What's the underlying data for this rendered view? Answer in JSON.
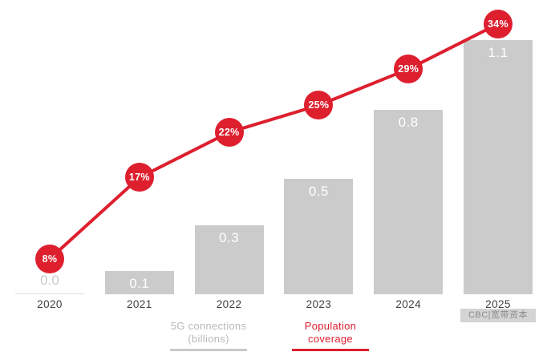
{
  "chart_data": {
    "type": "bar",
    "subtype": "combo-bar-line",
    "categories": [
      "2020",
      "2021",
      "2022",
      "2023",
      "2024",
      "2025"
    ],
    "series": [
      {
        "name": "5G connections (billions)",
        "type": "bar",
        "values": [
          0.0,
          0.1,
          0.3,
          0.5,
          0.8,
          1.1
        ],
        "labels": [
          "0.0",
          "0.1",
          "0.3",
          "0.5",
          "0.8",
          "1.1"
        ],
        "color": "#cbcbcb",
        "label_color": "#ffffff"
      },
      {
        "name": "Population coverage",
        "type": "line",
        "values": [
          8,
          17,
          22,
          25,
          29,
          34
        ],
        "labels": [
          "8%",
          "17%",
          "22%",
          "25%",
          "29%",
          "34%"
        ],
        "color": "#dd1f2e",
        "marker_text_color": "#ffffff"
      }
    ],
    "title": "",
    "xlabel": "",
    "ylabel": "",
    "bar_axis_range": [
      0,
      1.2
    ],
    "line_axis_range": [
      0,
      36
    ],
    "grid": false,
    "legend_position": "bottom",
    "legend": [
      {
        "label_lines": [
          "5G connections",
          "(billions)"
        ],
        "color": "#b9b9b9",
        "underline_color": "#c9c9c9"
      },
      {
        "label_lines": [
          "Population",
          "coverage"
        ],
        "color": "#dd1f2e",
        "underline_color": "#dd1f2e"
      }
    ],
    "watermark": "CBC|宽带资本"
  }
}
